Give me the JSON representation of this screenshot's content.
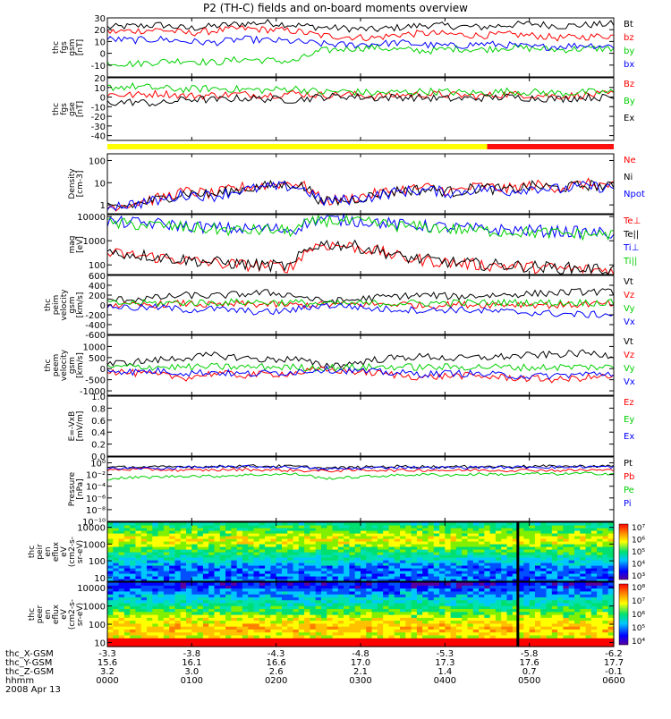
{
  "title": "P2 (TH-C) fields and on-board moments overview",
  "colors": {
    "black": "#000000",
    "red": "#ff0000",
    "green": "#00d000",
    "blue": "#0000ff",
    "yellow": "#ffff00",
    "bar_red": "#ff1010"
  },
  "chart_data": [
    {
      "type": "line",
      "id": "fgs-gsm",
      "ylabel_lines": [
        "thc",
        "fgs",
        "gsm",
        "[nT]"
      ],
      "ylim": [
        -20,
        30
      ],
      "yticks": [
        30,
        20,
        10,
        0,
        -10
      ],
      "series": [
        {
          "name": "Bt",
          "color": "black",
          "values": [
            22,
            23,
            24,
            21,
            23,
            25,
            26,
            24,
            22,
            21,
            20,
            22,
            24,
            23,
            22,
            24,
            25,
            23,
            24,
            25
          ]
        },
        {
          "name": "bz",
          "color": "red",
          "values": [
            18,
            19,
            20,
            17,
            19,
            21,
            20,
            19,
            15,
            14,
            13,
            16,
            17,
            16,
            15,
            16,
            15,
            13,
            14,
            15
          ]
        },
        {
          "name": "by",
          "color": "green",
          "values": [
            -8,
            -9,
            -7,
            -6,
            -8,
            -5,
            -6,
            -7,
            2,
            4,
            5,
            3,
            2,
            4,
            3,
            5,
            4,
            3,
            4,
            4
          ]
        },
        {
          "name": "bx",
          "color": "blue",
          "values": [
            12,
            11,
            12,
            10,
            9,
            12,
            11,
            10,
            8,
            7,
            8,
            9,
            7,
            6,
            8,
            7,
            5,
            6,
            7,
            6
          ]
        }
      ]
    },
    {
      "type": "line",
      "id": "fgs-gse",
      "ylabel_lines": [
        "thc",
        "fgs",
        "gse",
        "[nT]"
      ],
      "ylim": [
        -45,
        20
      ],
      "yticks": [
        20,
        10,
        0,
        -10,
        -20,
        -30,
        -40
      ],
      "series": [
        {
          "name": "Bz",
          "color": "red",
          "values": [
            3,
            2,
            4,
            1,
            2,
            3,
            2,
            4,
            2,
            3,
            1,
            2,
            3,
            2,
            1,
            3,
            2,
            1,
            2,
            3
          ]
        },
        {
          "name": "By",
          "color": "green",
          "values": [
            10,
            11,
            9,
            8,
            9,
            8,
            7,
            9,
            5,
            6,
            4,
            5,
            6,
            5,
            4,
            6,
            5,
            4,
            5,
            5
          ]
        },
        {
          "name": "Ex",
          "color": "black",
          "values": [
            -6,
            -5,
            -7,
            -2,
            -3,
            -1,
            -2,
            -3,
            0,
            1,
            -1,
            0,
            -1,
            -2,
            -1,
            0,
            -1,
            -2,
            0,
            -1
          ]
        }
      ]
    },
    {
      "type": "line",
      "id": "density",
      "scale": "log",
      "ylabel_lines": [
        "Density",
        "[cm-3]"
      ],
      "ylim": [
        0.4,
        200
      ],
      "yticks": [
        100,
        10,
        1
      ],
      "series": [
        {
          "name": "Ne",
          "color": "red",
          "values": [
            0.8,
            1.2,
            2,
            4,
            3,
            6,
            8,
            10,
            1.5,
            1.8,
            3,
            5,
            6,
            4,
            7,
            5,
            8,
            6,
            9,
            7
          ]
        },
        {
          "name": "Ni",
          "color": "black",
          "values": [
            0.7,
            1,
            1.8,
            3.5,
            2.8,
            5,
            7,
            9,
            1.3,
            1.6,
            2.6,
            4.5,
            5,
            3.8,
            6,
            4.5,
            7,
            5.5,
            8,
            6
          ]
        },
        {
          "name": "Npot",
          "color": "blue",
          "values": [
            0.9,
            1.1,
            1.6,
            3,
            2.5,
            4.5,
            6,
            7,
            1.4,
            1.7,
            2.4,
            4,
            4.6,
            3.4,
            5.5,
            4,
            6,
            5,
            7,
            5.6
          ]
        }
      ]
    },
    {
      "type": "line",
      "id": "temperature",
      "scale": "log",
      "ylabel_lines": [
        "mag",
        "[eV]"
      ],
      "ylim": [
        40,
        12000
      ],
      "yticks": [
        10000,
        1000,
        100
      ],
      "series": [
        {
          "name": "Te⊥",
          "color": "red",
          "values": [
            300,
            250,
            200,
            150,
            120,
            100,
            90,
            80,
            700,
            600,
            400,
            200,
            150,
            120,
            100,
            90,
            80,
            70,
            65,
            60
          ]
        },
        {
          "name": "Te||",
          "color": "black",
          "values": [
            320,
            270,
            210,
            160,
            130,
            110,
            95,
            85,
            750,
            650,
            420,
            210,
            160,
            125,
            105,
            95,
            85,
            75,
            70,
            65
          ]
        },
        {
          "name": "Ti⊥",
          "color": "blue",
          "values": [
            6000,
            5500,
            5000,
            4000,
            3500,
            3000,
            3200,
            2800,
            8000,
            7000,
            6000,
            4500,
            4000,
            3500,
            3000,
            2800,
            2600,
            2400,
            2200,
            2000
          ]
        },
        {
          "name": "Ti||",
          "color": "green",
          "values": [
            5000,
            4800,
            4200,
            3500,
            3000,
            2600,
            2800,
            2500,
            7000,
            6200,
            5200,
            4000,
            3600,
            3000,
            2600,
            2400,
            2200,
            2000,
            1900,
            1800
          ]
        }
      ]
    },
    {
      "type": "line",
      "id": "peim-velocity",
      "ylabel_lines": [
        "thc",
        "peim",
        "velocity",
        "gsm",
        "[km/s]"
      ],
      "ylim": [
        -600,
        600
      ],
      "yticks": [
        600,
        400,
        200,
        0,
        -200,
        -400,
        -600
      ],
      "series": [
        {
          "name": "Vt",
          "color": "black",
          "values": [
            100,
            120,
            150,
            200,
            180,
            220,
            250,
            200,
            80,
            90,
            150,
            180,
            200,
            170,
            190,
            210,
            230,
            250,
            270,
            260
          ]
        },
        {
          "name": "Vz",
          "color": "red",
          "values": [
            10,
            -20,
            15,
            30,
            -10,
            20,
            10,
            -5,
            5,
            10,
            15,
            20,
            -15,
            10,
            5,
            15,
            10,
            -10,
            20,
            15
          ]
        },
        {
          "name": "Vy",
          "color": "green",
          "values": [
            30,
            40,
            35,
            50,
            45,
            60,
            55,
            50,
            20,
            25,
            30,
            40,
            35,
            45,
            40,
            50,
            45,
            40,
            50,
            45
          ]
        },
        {
          "name": "Vx",
          "color": "blue",
          "values": [
            -20,
            -60,
            -50,
            -100,
            -80,
            -120,
            -150,
            -100,
            -10,
            -20,
            -80,
            -90,
            -110,
            -90,
            -120,
            -140,
            -160,
            -180,
            -200,
            -190
          ]
        }
      ]
    },
    {
      "type": "line",
      "id": "peem-velocity",
      "ylabel_lines": [
        "thc",
        "peem",
        "velocity",
        "gsm",
        "[km/s]"
      ],
      "ylim": [
        -1200,
        1500
      ],
      "yticks": [
        1000,
        500,
        0,
        -500,
        -1000
      ],
      "series": [
        {
          "name": "Vt",
          "color": "black",
          "values": [
            200,
            300,
            400,
            500,
            600,
            500,
            400,
            450,
            150,
            200,
            400,
            500,
            550,
            450,
            500,
            550,
            600,
            650,
            700,
            600
          ]
        },
        {
          "name": "Vz",
          "color": "red",
          "values": [
            -100,
            -200,
            -300,
            -400,
            -200,
            -300,
            -250,
            -200,
            -50,
            -100,
            -200,
            -300,
            -400,
            -300,
            -350,
            -400,
            -450,
            -500,
            -400,
            -350
          ]
        },
        {
          "name": "Vy",
          "color": "green",
          "values": [
            50,
            100,
            80,
            60,
            90,
            70,
            80,
            60,
            40,
            50,
            70,
            80,
            60,
            70,
            80,
            60,
            50,
            70,
            80,
            60
          ]
        },
        {
          "name": "Vx",
          "color": "blue",
          "values": [
            -50,
            -150,
            -100,
            -200,
            -150,
            -250,
            -200,
            -150,
            -30,
            -80,
            -150,
            -200,
            -250,
            -200,
            -250,
            -300,
            -350,
            -300,
            -250,
            -200
          ]
        }
      ]
    },
    {
      "type": "line",
      "id": "evxb",
      "ylabel_lines": [
        "E=-VxB",
        "[mV/m]"
      ],
      "ylim": [
        0,
        1
      ],
      "yticks": [
        1.0,
        0.8,
        0.6,
        0.4,
        0.2,
        0.0
      ],
      "ytick_labels": [
        "1.0",
        "0.8",
        "0.6",
        "0.4",
        "0.2",
        "0.0"
      ],
      "series": [
        {
          "name": "Ez",
          "color": "red",
          "values": []
        },
        {
          "name": "Ey",
          "color": "green",
          "values": []
        },
        {
          "name": "Ex",
          "color": "blue",
          "values": []
        }
      ]
    },
    {
      "type": "line",
      "id": "pressure",
      "scale": "log",
      "ylabel_lines": [
        "Pressure",
        "[nPa]"
      ],
      "ylim": [
        1e-10,
        10
      ],
      "yticks": [
        1,
        0.01,
        0.0001,
        1e-06,
        1e-08,
        1e-10
      ],
      "ytick_labels": [
        "10⁰",
        "10⁻²",
        "10⁻⁴",
        "10⁻⁶",
        "10⁻⁸",
        "10⁻¹⁰"
      ],
      "series": [
        {
          "name": "Pt",
          "color": "black",
          "values": [
            0.15,
            0.2,
            0.18,
            0.25,
            0.22,
            0.3,
            0.28,
            0.25,
            0.12,
            0.15,
            0.2,
            0.25,
            0.22,
            0.2,
            0.24,
            0.22,
            0.26,
            0.24,
            0.28,
            0.26
          ]
        },
        {
          "name": "Pb",
          "color": "red",
          "values": [
            0.06,
            0.08,
            0.07,
            0.05,
            0.06,
            0.07,
            0.06,
            0.05,
            0.04,
            0.05,
            0.06,
            0.05,
            0.06,
            0.05,
            0.06,
            0.05,
            0.06,
            0.05,
            0.06,
            0.05
          ]
        },
        {
          "name": "Pe",
          "color": "green",
          "values": [
            0.002,
            0.003,
            0.004,
            0.006,
            0.005,
            0.008,
            0.01,
            0.012,
            0.002,
            0.003,
            0.005,
            0.008,
            0.01,
            0.008,
            0.012,
            0.01,
            0.014,
            0.012,
            0.016,
            0.014
          ]
        },
        {
          "name": "Pi",
          "color": "blue",
          "values": [
            0.1,
            0.12,
            0.11,
            0.18,
            0.16,
            0.22,
            0.2,
            0.18,
            0.08,
            0.1,
            0.14,
            0.18,
            0.16,
            0.15,
            0.18,
            0.16,
            0.2,
            0.18,
            0.22,
            0.2
          ]
        }
      ]
    },
    {
      "type": "heatmap",
      "id": "peir-spectrogram",
      "scale": "log",
      "ylabel_lines": [
        "thc",
        "peir",
        "en",
        "eflux",
        "eV",
        "(cm2-s-",
        "sr-eV)"
      ],
      "ylim": [
        6,
        20000
      ],
      "yticks": [
        10000,
        1000,
        100,
        10
      ],
      "colorbar_ticks": [
        "10⁷",
        "10⁶",
        "10⁵",
        "10⁴",
        "10³"
      ]
    },
    {
      "type": "heatmap",
      "id": "peer-spectrogram",
      "scale": "log",
      "ylabel_lines": [
        "thc",
        "peer",
        "en",
        "eflux",
        "eV",
        "(cm2-s-",
        "sr-eV)"
      ],
      "ylim": [
        6,
        20000
      ],
      "yticks": [
        10000,
        1000,
        100,
        10
      ],
      "colorbar_ticks": [
        "10⁸",
        "10⁷",
        "10⁶",
        "10⁵",
        "10⁴"
      ]
    }
  ],
  "status_bar": {
    "boundary_fraction": 0.75
  },
  "x_axis": {
    "row_labels": [
      "thc_X-GSM",
      "thc_Y-GSM",
      "thc_Z-GSM",
      "hhmm",
      "2008 Apr 13"
    ],
    "columns": [
      {
        "x": "-3.3",
        "y": "15.6",
        "z": "3.2",
        "t": "0000"
      },
      {
        "x": "-3.8",
        "y": "16.1",
        "z": "3.0",
        "t": "0100"
      },
      {
        "x": "-4.3",
        "y": "16.6",
        "z": "2.6",
        "t": "0200"
      },
      {
        "x": "-4.8",
        "y": "17.0",
        "z": "2.1",
        "t": "0300"
      },
      {
        "x": "-5.3",
        "y": "17.3",
        "z": "1.4",
        "t": "0400"
      },
      {
        "x": "-5.8",
        "y": "17.6",
        "z": "0.7",
        "t": "0500"
      },
      {
        "x": "-6.2",
        "y": "17.7",
        "z": "-0.1",
        "t": "0600"
      }
    ]
  }
}
